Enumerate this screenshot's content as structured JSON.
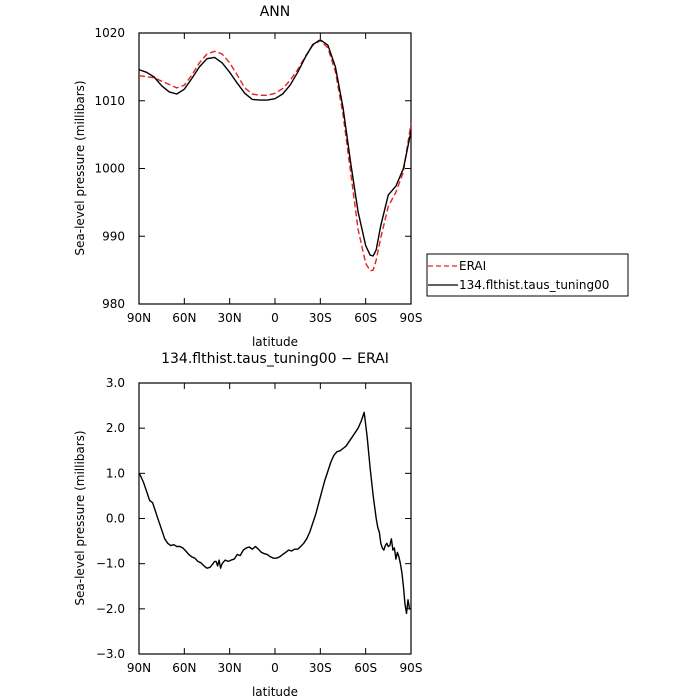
{
  "chart_data": [
    {
      "type": "line",
      "title": "ANN",
      "xlabel": "latitude",
      "ylabel": "Sea-level pressure (millibars)",
      "xlim": [
        90,
        -90
      ],
      "ylim": [
        980,
        1020
      ],
      "xticks": [
        90,
        60,
        30,
        0,
        -30,
        -60,
        -90
      ],
      "xtick_labels": [
        "90N",
        "60N",
        "30N",
        "0",
        "30S",
        "60S",
        "90S"
      ],
      "yticks": [
        980,
        990,
        1000,
        1010,
        1020
      ],
      "ytick_labels": [
        "980",
        "990",
        "1000",
        "1010",
        "1020"
      ],
      "legend": {
        "placement": "outside-right",
        "entries": [
          "ERAI",
          "134.flthist.taus_tuning00"
        ]
      },
      "series": [
        {
          "name": "ERAI",
          "color": "#e8201f",
          "dash": "dashed",
          "x": [
            90,
            80,
            70,
            65,
            60,
            55,
            50,
            45,
            40,
            35,
            30,
            25,
            20,
            15,
            10,
            5,
            0,
            -5,
            -10,
            -15,
            -20,
            -25,
            -30,
            -35,
            -40,
            -45,
            -50,
            -55,
            -60,
            -63,
            -65,
            -67,
            -70,
            -75,
            -80,
            -85,
            -90
          ],
          "y": [
            1013.7,
            1013.4,
            1012.4,
            1011.9,
            1012.3,
            1013.8,
            1015.6,
            1016.9,
            1017.3,
            1016.9,
            1015.6,
            1013.8,
            1011.9,
            1011.0,
            1010.8,
            1010.8,
            1011.1,
            1011.8,
            1013.0,
            1014.6,
            1016.5,
            1018.2,
            1018.9,
            1017.8,
            1014.3,
            1008.0,
            999.5,
            991.0,
            986.0,
            984.9,
            985.0,
            986.5,
            989.8,
            994.4,
            996.5,
            999.5,
            1006.7
          ]
        },
        {
          "name": "134.flthist.taus_tuning00",
          "color": "#000000",
          "dash": "solid",
          "x": [
            90,
            85,
            80,
            75,
            70,
            65,
            60,
            55,
            50,
            45,
            40,
            35,
            30,
            25,
            20,
            15,
            10,
            5,
            0,
            -5,
            -10,
            -15,
            -20,
            -25,
            -30,
            -35,
            -40,
            -45,
            -50,
            -55,
            -60,
            -63,
            -65,
            -67,
            -70,
            -75,
            -80,
            -85,
            -90
          ],
          "y": [
            1014.6,
            1014.2,
            1013.5,
            1012.2,
            1011.3,
            1011.0,
            1011.7,
            1013.3,
            1015.0,
            1016.2,
            1016.4,
            1015.6,
            1014.2,
            1012.6,
            1011.1,
            1010.2,
            1010.1,
            1010.1,
            1010.3,
            1011.0,
            1012.3,
            1014.2,
            1016.4,
            1018.3,
            1019.0,
            1018.2,
            1015.0,
            1009.0,
            1000.9,
            993.6,
            988.6,
            987.2,
            987.1,
            988.0,
            991.6,
            996.1,
            997.4,
            1000.0,
            1005.5
          ]
        }
      ]
    },
    {
      "type": "line",
      "title": "134.flthist.taus_tuning00 − ERAI",
      "xlabel": "latitude",
      "ylabel": "Sea-level pressure (millibars)",
      "xlim": [
        90,
        -90
      ],
      "ylim": [
        -3,
        3
      ],
      "xticks": [
        90,
        60,
        30,
        0,
        -30,
        -60,
        -90
      ],
      "xtick_labels": [
        "90N",
        "60N",
        "30N",
        "0",
        "30S",
        "60S",
        "90S"
      ],
      "yticks": [
        -3,
        -2,
        -1,
        0,
        1,
        2,
        3
      ],
      "ytick_labels": [
        "−3.0",
        "−2.0",
        "−1.0",
        "0.0",
        "1.0",
        "2.0",
        "3.0"
      ],
      "series": [
        {
          "color": "#000000",
          "dash": "solid",
          "x": [
            90,
            89,
            87,
            85,
            83,
            81,
            79,
            77,
            75,
            73,
            71,
            69,
            67,
            65,
            63,
            61,
            59,
            57,
            55,
            53,
            51,
            49,
            47,
            45,
            43,
            41,
            40,
            39,
            38,
            37,
            36,
            35,
            33,
            31,
            29,
            27,
            25,
            23,
            21,
            19,
            17,
            15,
            13,
            11,
            9,
            7,
            5,
            3,
            1,
            -1,
            -3,
            -5,
            -7,
            -9,
            -11,
            -13,
            -15,
            -17,
            -19,
            -21,
            -23,
            -25,
            -27,
            -29,
            -31,
            -33,
            -35,
            -37,
            -39,
            -41,
            -43,
            -45,
            -47,
            -49,
            -51,
            -53,
            -55,
            -57,
            -59,
            -61,
            -63,
            -65,
            -67,
            -68,
            -69,
            -70,
            -71,
            -72,
            -73,
            -74,
            -75,
            -76,
            -77,
            -78,
            -79,
            -80,
            -81,
            -82,
            -83,
            -84,
            -85,
            -86,
            -87,
            -88,
            -89,
            -90
          ],
          "y": [
            1.0,
            0.95,
            0.8,
            0.6,
            0.4,
            0.35,
            0.15,
            -0.05,
            -0.25,
            -0.45,
            -0.55,
            -0.6,
            -0.58,
            -0.62,
            -0.62,
            -0.65,
            -0.72,
            -0.8,
            -0.85,
            -0.88,
            -0.95,
            -0.98,
            -1.05,
            -1.1,
            -1.08,
            -1.0,
            -0.95,
            -0.95,
            -1.05,
            -0.92,
            -1.1,
            -1.0,
            -0.92,
            -0.95,
            -0.92,
            -0.9,
            -0.8,
            -0.82,
            -0.7,
            -0.65,
            -0.63,
            -0.68,
            -0.62,
            -0.68,
            -0.75,
            -0.78,
            -0.8,
            -0.85,
            -0.88,
            -0.88,
            -0.85,
            -0.8,
            -0.75,
            -0.7,
            -0.72,
            -0.68,
            -0.68,
            -0.62,
            -0.55,
            -0.45,
            -0.3,
            -0.1,
            0.1,
            0.35,
            0.6,
            0.85,
            1.05,
            1.25,
            1.4,
            1.48,
            1.5,
            1.55,
            1.6,
            1.7,
            1.8,
            1.9,
            2.0,
            2.15,
            2.35,
            1.8,
            1.1,
            0.5,
            0.0,
            -0.2,
            -0.3,
            -0.55,
            -0.65,
            -0.7,
            -0.6,
            -0.55,
            -0.62,
            -0.6,
            -0.45,
            -0.7,
            -0.65,
            -0.9,
            -0.75,
            -0.85,
            -1.0,
            -1.2,
            -1.5,
            -1.9,
            -2.1,
            -1.8,
            -2.0,
            -2.0
          ]
        }
      ]
    }
  ]
}
